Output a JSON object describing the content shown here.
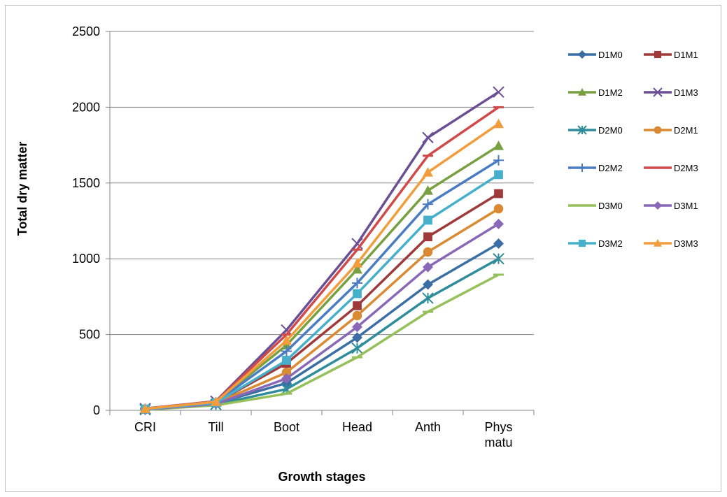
{
  "chart_data": {
    "type": "line",
    "title": "",
    "xlabel": "Growth stages",
    "ylabel": "Total dry matter",
    "categories": [
      "CRI",
      "Till",
      "Boot",
      "Head",
      "Anth",
      "Phys matu"
    ],
    "ylim": [
      0,
      2500
    ],
    "yticks": [
      0,
      500,
      1000,
      1500,
      2000,
      2500
    ],
    "grid": "horizontal",
    "legend": "right",
    "series": [
      {
        "name": "D1M0",
        "color": "#3a6ea5",
        "marker": "diamond",
        "values": [
          5,
          45,
          180,
          480,
          830,
          1100
        ]
      },
      {
        "name": "D1M1",
        "color": "#a03a3a",
        "marker": "square",
        "values": [
          8,
          50,
          310,
          690,
          1145,
          1430
        ]
      },
      {
        "name": "D1M2",
        "color": "#78a040",
        "marker": "triangle",
        "values": [
          10,
          55,
          430,
          930,
          1450,
          1745
        ]
      },
      {
        "name": "D1M3",
        "color": "#6a4f94",
        "marker": "x",
        "values": [
          12,
          60,
          530,
          1100,
          1800,
          2100
        ]
      },
      {
        "name": "D2M0",
        "color": "#2f8c9a",
        "marker": "star",
        "values": [
          4,
          38,
          140,
          410,
          740,
          1000
        ]
      },
      {
        "name": "D2M1",
        "color": "#d98a32",
        "marker": "circle",
        "values": [
          7,
          47,
          250,
          625,
          1045,
          1330
        ]
      },
      {
        "name": "D2M2",
        "color": "#4a7cc4",
        "marker": "plus",
        "values": [
          9,
          52,
          390,
          840,
          1360,
          1650
        ]
      },
      {
        "name": "D2M3",
        "color": "#d04a4a",
        "marker": "dash",
        "values": [
          11,
          58,
          500,
          1060,
          1680,
          2000
        ]
      },
      {
        "name": "D3M0",
        "color": "#96c05a",
        "marker": "dash",
        "values": [
          3,
          33,
          110,
          350,
          650,
          895
        ]
      },
      {
        "name": "D3M1",
        "color": "#8a68b8",
        "marker": "diamond",
        "values": [
          6,
          42,
          210,
          550,
          945,
          1230
        ]
      },
      {
        "name": "D3M2",
        "color": "#46b0cc",
        "marker": "square",
        "values": [
          8,
          50,
          330,
          770,
          1255,
          1555
        ]
      },
      {
        "name": "D3M3",
        "color": "#f39c3c",
        "marker": "triangle",
        "values": [
          10,
          56,
          460,
          970,
          1570,
          1890
        ]
      }
    ]
  }
}
